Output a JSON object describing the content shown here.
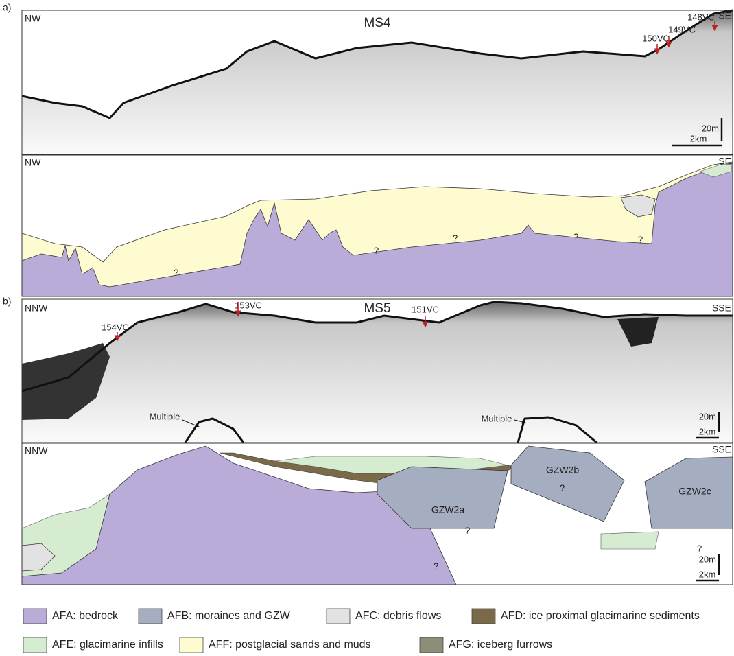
{
  "panel_a": {
    "label": "a)",
    "profile": {
      "title": "MS4",
      "left": "NW",
      "right": "SE",
      "cores": [
        "150VC",
        "149VC",
        "148VC"
      ],
      "scale_vertical": "20m",
      "scale_horizontal": "2km"
    },
    "interpretation": {
      "left": "NW",
      "right": "SE",
      "unknown_marks": [
        "?",
        "?",
        "?",
        "?",
        "?"
      ]
    }
  },
  "panel_b": {
    "label": "b)",
    "profile": {
      "title": "MS5",
      "left": "NNW",
      "right": "SSE",
      "cores": [
        "154VC",
        "153VC",
        "151VC"
      ],
      "multiples": [
        "Multiple",
        "Multiple"
      ],
      "scale_vertical": "20m",
      "scale_horizontal": "2km"
    },
    "interpretation": {
      "left": "NNW",
      "right": "SSE",
      "units": [
        "GZW2a",
        "GZW2b",
        "GZW2c"
      ],
      "unknown_marks": [
        "?",
        "?",
        "?",
        "?"
      ],
      "scale_vertical": "20m",
      "scale_horizontal": "2km"
    }
  },
  "legend": [
    {
      "label": "AFA: bedrock",
      "color": "#b9acd8"
    },
    {
      "label": "AFB: moraines and GZW",
      "color": "#a5adc0"
    },
    {
      "label": "AFC: debris flows",
      "color": "#e2e2e2"
    },
    {
      "label": "AFD: ice proximal glacimarine sediments",
      "color": "#7a6a48"
    },
    {
      "label": "AFE: glacimarine infills",
      "color": "#d6ecd0"
    },
    {
      "label": "AFF: postglacial sands and muds",
      "color": "#fffbd0"
    },
    {
      "label": "AFG: iceberg furrows",
      "color": "#8e8e78"
    }
  ]
}
